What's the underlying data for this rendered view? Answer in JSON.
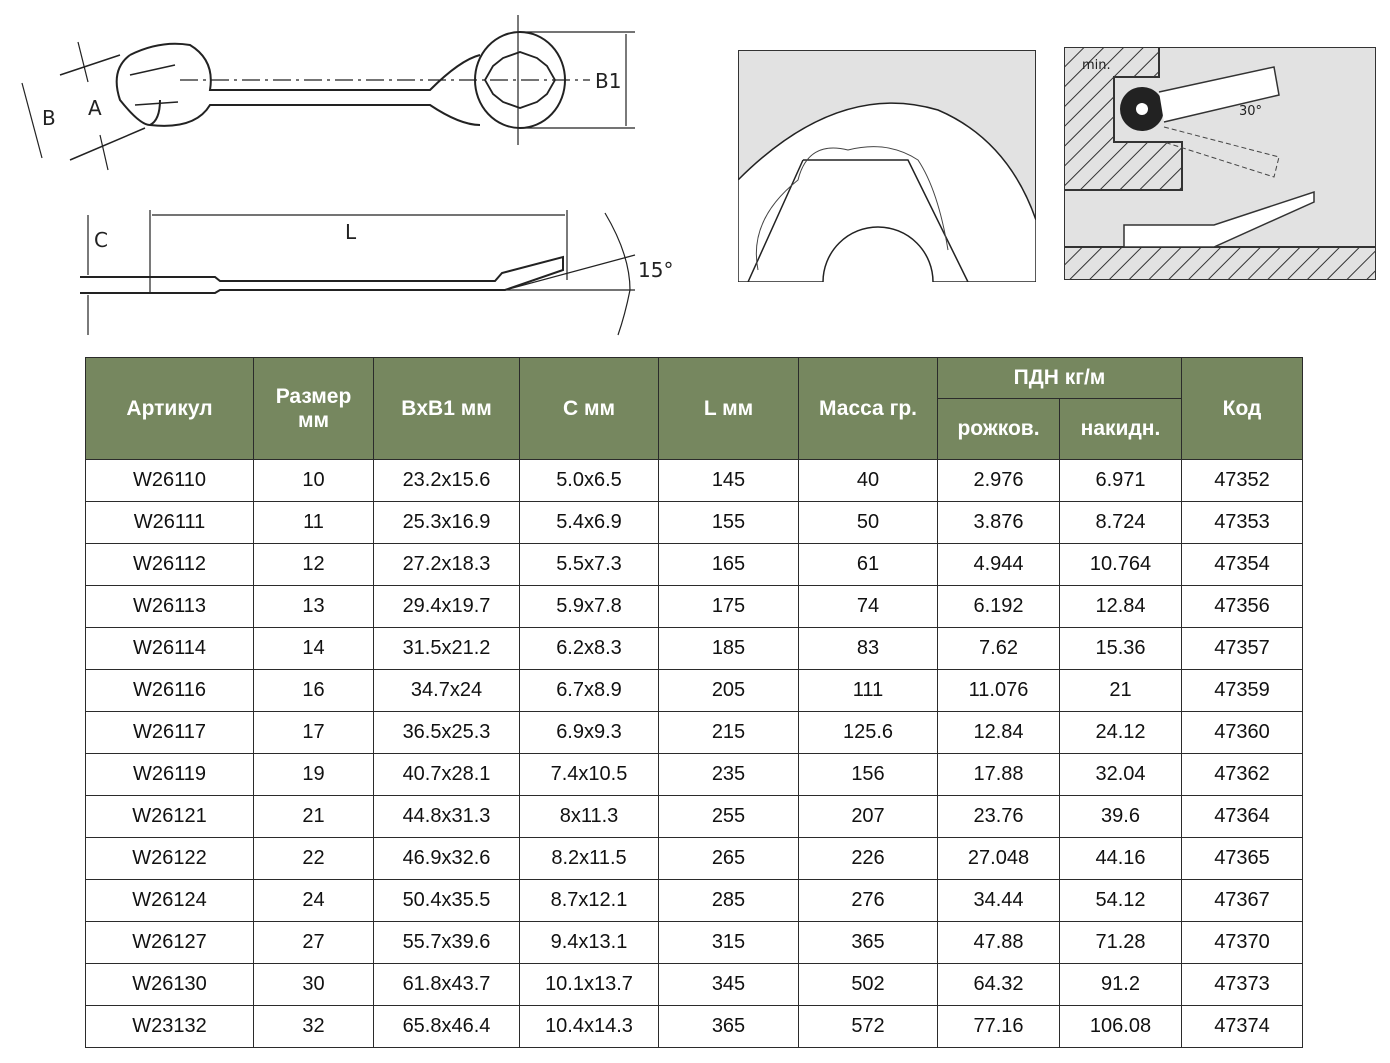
{
  "drawings": {
    "top_view": {
      "label_a": "A",
      "label_b": "B",
      "label_b1": "B1"
    },
    "side_view": {
      "label_c": "C",
      "label_l": "L",
      "label_angle": "15°"
    },
    "clearance_view": {
      "label_min": "min.",
      "label_angle": "30°"
    }
  },
  "table": {
    "headers": {
      "article": "Артикул",
      "size": "Размер мм",
      "bxb1": "BxB1 мм",
      "c": "C мм",
      "l": "L мм",
      "mass": "Масса гр.",
      "torque": "ПДН кг/м",
      "torque_open": "рожков.",
      "torque_ring": "накидн.",
      "code": "Код"
    },
    "header_color": "#76875f",
    "rows": [
      [
        "W26110",
        "10",
        "23.2x15.6",
        "5.0x6.5",
        "145",
        "40",
        "2.976",
        "6.971",
        "47352"
      ],
      [
        "W26111",
        "11",
        "25.3x16.9",
        "5.4x6.9",
        "155",
        "50",
        "3.876",
        "8.724",
        "47353"
      ],
      [
        "W26112",
        "12",
        "27.2x18.3",
        "5.5x7.3",
        "165",
        "61",
        "4.944",
        "10.764",
        "47354"
      ],
      [
        "W26113",
        "13",
        "29.4x19.7",
        "5.9x7.8",
        "175",
        "74",
        "6.192",
        "12.84",
        "47356"
      ],
      [
        "W26114",
        "14",
        "31.5x21.2",
        "6.2x8.3",
        "185",
        "83",
        "7.62",
        "15.36",
        "47357"
      ],
      [
        "W26116",
        "16",
        "34.7x24",
        "6.7x8.9",
        "205",
        "111",
        "11.076",
        "21",
        "47359"
      ],
      [
        "W26117",
        "17",
        "36.5x25.3",
        "6.9x9.3",
        "215",
        "125.6",
        "12.84",
        "24.12",
        "47360"
      ],
      [
        "W26119",
        "19",
        "40.7x28.1",
        "7.4x10.5",
        "235",
        "156",
        "17.88",
        "32.04",
        "47362"
      ],
      [
        "W26121",
        "21",
        "44.8x31.3",
        "8x11.3",
        "255",
        "207",
        "23.76",
        "39.6",
        "47364"
      ],
      [
        "W26122",
        "22",
        "46.9x32.6",
        "8.2x11.5",
        "265",
        "226",
        "27.048",
        "44.16",
        "47365"
      ],
      [
        "W26124",
        "24",
        "50.4x35.5",
        "8.7x12.1",
        "285",
        "276",
        "34.44",
        "54.12",
        "47367"
      ],
      [
        "W26127",
        "27",
        "55.7x39.6",
        "9.4x13.1",
        "315",
        "365",
        "47.88",
        "71.28",
        "47370"
      ],
      [
        "W26130",
        "30",
        "61.8x43.7",
        "10.1x13.7",
        "345",
        "502",
        "64.32",
        "91.2",
        "47373"
      ],
      [
        "W23132",
        "32",
        "65.8x46.4",
        "10.4x14.3",
        "365",
        "572",
        "77.16",
        "106.08",
        "47374"
      ]
    ]
  }
}
